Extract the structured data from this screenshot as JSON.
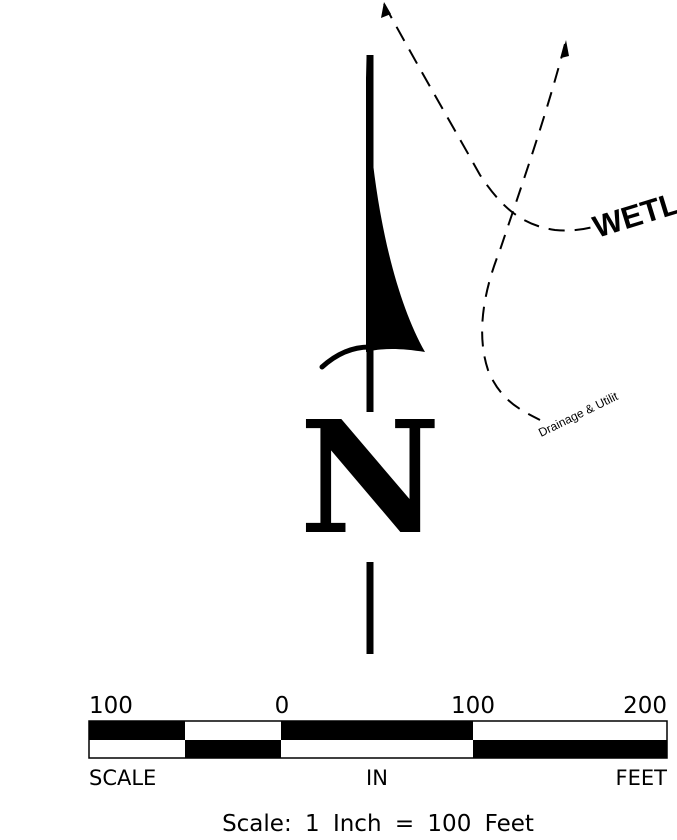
{
  "map": {
    "colors": {
      "ink": "#000000",
      "paper": "#ffffff"
    },
    "north_arrow": {
      "letter": "N"
    },
    "lines": {
      "wetland_label": "WETL",
      "easement_label": "Drainage & Utilit"
    },
    "scale_bar": {
      "tick_labels": [
        "100",
        "0",
        "100",
        "200"
      ],
      "left_caption": "SCALE",
      "center_caption": "IN",
      "right_caption": "FEET",
      "units_per_segment": 50,
      "note": "Scale: 1 Inch = 100 Feet"
    }
  }
}
